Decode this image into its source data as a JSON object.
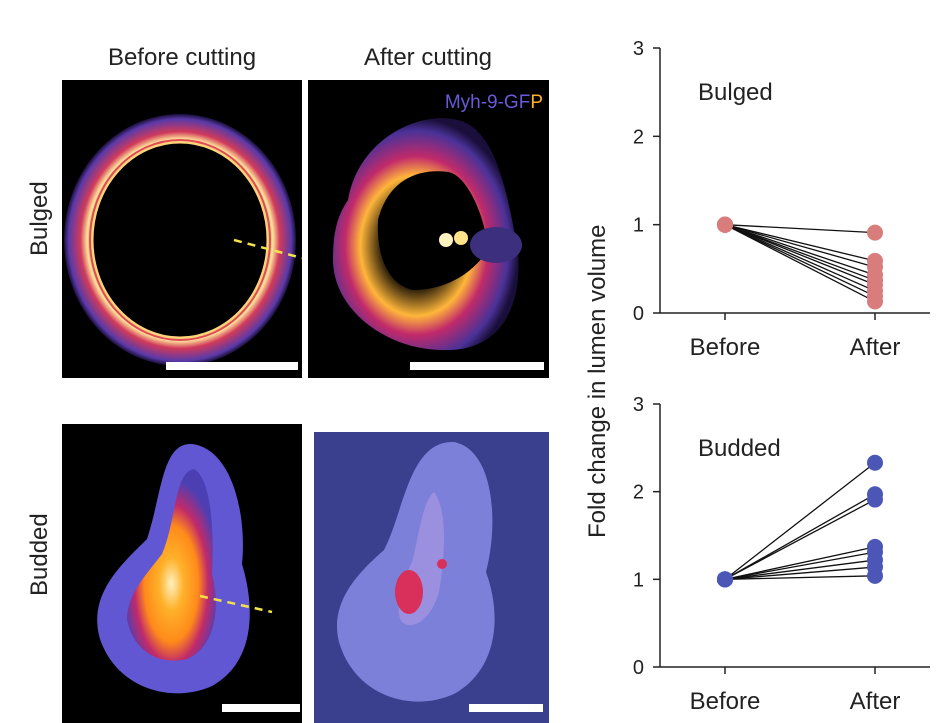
{
  "columns": {
    "before": "Before cutting",
    "after": "After cutting"
  },
  "rows": {
    "bulged": "Bulged",
    "budded": "Budded"
  },
  "legend": {
    "prefix": "Myh-9-GF",
    "suffix": "P"
  },
  "colors": {
    "bulged_points": "#d97c7c",
    "budded_points": "#4c56b7",
    "lines": "#111111",
    "fire_dark": "#3a1f7a",
    "fire_mid": "#c12a6a",
    "fire_hot": "#ffb12a",
    "fire_white": "#ffffee"
  },
  "chart_data": [
    {
      "type": "scatter",
      "title": "Bulged",
      "ylabel": "Fold change in lumen volume",
      "categories": [
        "Before",
        "After"
      ],
      "ylim": [
        0,
        3
      ],
      "yticks": [
        "0",
        "1",
        "2",
        "3"
      ],
      "pairs": [
        [
          1,
          0.91
        ],
        [
          1,
          0.59
        ],
        [
          1,
          0.52
        ],
        [
          1,
          0.43
        ],
        [
          1,
          0.37
        ],
        [
          1,
          0.32
        ],
        [
          1,
          0.25
        ],
        [
          1,
          0.19
        ],
        [
          1,
          0.13
        ]
      ]
    },
    {
      "type": "scatter",
      "title": "Budded",
      "ylabel": "Fold change in lumen volume",
      "categories": [
        "Before",
        "After"
      ],
      "ylim": [
        0,
        3
      ],
      "yticks": [
        "0",
        "1",
        "2",
        "3"
      ],
      "pairs": [
        [
          1,
          2.33
        ],
        [
          1,
          1.97
        ],
        [
          1,
          1.91
        ],
        [
          1,
          1.37
        ],
        [
          1,
          1.31
        ],
        [
          1,
          1.22
        ],
        [
          1,
          1.14
        ],
        [
          1,
          1.04
        ]
      ]
    }
  ]
}
